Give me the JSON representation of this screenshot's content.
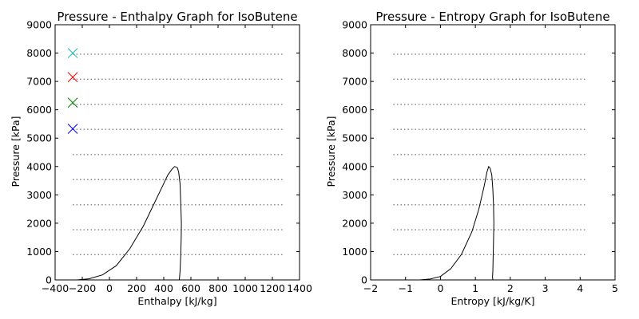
{
  "chart_data": [
    {
      "type": "line",
      "title": "Pressure - Enthalpy Graph for IsoButene",
      "xlabel": "Enthalpy [kJ/kg]",
      "ylabel": "Pressure [kPa]",
      "xlim": [
        -400,
        1400
      ],
      "ylim": [
        0,
        9000
      ],
      "xticks": [
        -400,
        -200,
        0,
        200,
        400,
        600,
        800,
        1000,
        1200,
        1400
      ],
      "yticks": [
        0,
        1000,
        2000,
        3000,
        4000,
        5000,
        6000,
        7000,
        8000,
        9000
      ],
      "grid": false,
      "isobar_x_range": [
        -270,
        1280
      ],
      "isobars": [
        890,
        1770,
        2650,
        3540,
        4420,
        5310,
        6190,
        7080,
        7960
      ],
      "saturation_dome": {
        "x": [
          -240,
          -150,
          -50,
          50,
          150,
          250,
          330,
          390,
          430,
          460,
          480,
          500,
          510,
          520,
          525,
          530,
          528,
          525,
          520,
          515
        ],
        "y": [
          0,
          40,
          180,
          500,
          1100,
          1900,
          2700,
          3300,
          3700,
          3900,
          4000,
          3960,
          3800,
          3400,
          2800,
          2000,
          1400,
          800,
          300,
          0
        ]
      },
      "markers": [
        {
          "x": -270,
          "y": 5330,
          "color": "#0000ff"
        },
        {
          "x": -270,
          "y": 6250,
          "color": "#008000"
        },
        {
          "x": -270,
          "y": 7150,
          "color": "#ff0000"
        },
        {
          "x": -270,
          "y": 8000,
          "color": "#00bfbf"
        }
      ]
    },
    {
      "type": "line",
      "title": "Pressure - Entropy Graph for IsoButene",
      "xlabel": "Entropy [kJ/kg/K]",
      "ylabel": "Pressure [kPa]",
      "xlim": [
        -2,
        5
      ],
      "ylim": [
        0,
        9000
      ],
      "xticks": [
        -2,
        -1,
        0,
        1,
        2,
        3,
        4,
        5
      ],
      "yticks": [
        0,
        1000,
        2000,
        3000,
        4000,
        5000,
        6000,
        7000,
        8000,
        9000
      ],
      "grid": false,
      "isobar_x_range": [
        -1.35,
        4.2
      ],
      "isobars": [
        890,
        1770,
        2650,
        3540,
        4420,
        5310,
        6190,
        7080,
        7960
      ],
      "saturation_dome": {
        "x": [
          -0.6,
          -0.3,
          0.0,
          0.3,
          0.6,
          0.9,
          1.1,
          1.25,
          1.33,
          1.38,
          1.42,
          1.47,
          1.5,
          1.52,
          1.53,
          1.52,
          1.51,
          1.5,
          1.49,
          1.5
        ],
        "y": [
          0,
          30,
          120,
          400,
          900,
          1700,
          2500,
          3300,
          3800,
          4000,
          3950,
          3700,
          3200,
          2600,
          2000,
          1400,
          800,
          300,
          100,
          0
        ]
      },
      "markers": []
    }
  ]
}
